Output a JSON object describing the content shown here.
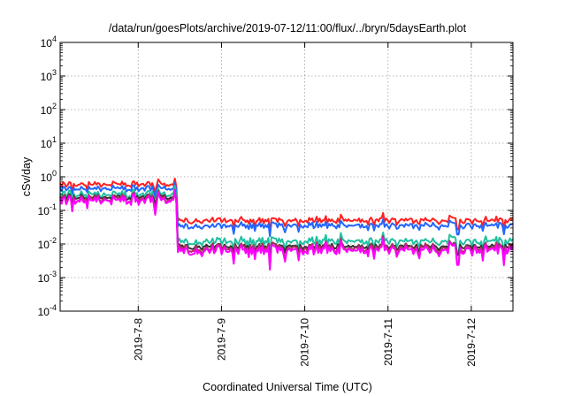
{
  "chart_data": {
    "type": "line",
    "title": "/data/run/goesPlots/archive/2019-07-12/11:00/flux/../bryn/5daysEarth.plot",
    "xlabel": "Coordinated Universal Time (UTC)",
    "ylabel": "cSv/day",
    "yscale": "log",
    "ylim": [
      0.0001,
      10000
    ],
    "xlim": [
      "2019-07-07 01:30",
      "2019-07-12 12:00"
    ],
    "grid": true,
    "legend": "none",
    "y_ticks": [
      {
        "base": "10",
        "exp": "-4"
      },
      {
        "base": "10",
        "exp": "-3"
      },
      {
        "base": "10",
        "exp": "-2"
      },
      {
        "base": "10",
        "exp": "-1"
      },
      {
        "base": "10",
        "exp": "0"
      },
      {
        "base": "10",
        "exp": "1"
      },
      {
        "base": "10",
        "exp": "2"
      },
      {
        "base": "10",
        "exp": "3"
      },
      {
        "base": "10",
        "exp": "4"
      }
    ],
    "x_ticks": [
      {
        "label": "2019-7-8",
        "date": "2019-07-08 00:00"
      },
      {
        "label": "2019-7-9",
        "date": "2019-07-09 00:00"
      },
      {
        "label": "2019-7-10",
        "date": "2019-07-10 00:00"
      },
      {
        "label": "2019-7-11",
        "date": "2019-07-11 00:00"
      },
      {
        "label": "2019-7-12",
        "date": "2019-07-12 00:00"
      }
    ],
    "series": [
      {
        "color": "#ff2020",
        "levels": [
          {
            "from": "2019-07-07 01:30",
            "to": "2019-07-08 11:00",
            "value": 0.6
          },
          {
            "from": "2019-07-08 11:00",
            "to": "2019-07-12 12:00",
            "value": 0.05
          }
        ]
      },
      {
        "color": "#2266ff",
        "levels": [
          {
            "from": "2019-07-07 01:30",
            "to": "2019-07-08 11:00",
            "value": 0.45
          },
          {
            "from": "2019-07-08 11:00",
            "to": "2019-07-12 12:00",
            "value": 0.035
          }
        ]
      },
      {
        "color": "#20c0a0",
        "levels": [
          {
            "from": "2019-07-07 01:30",
            "to": "2019-07-08 11:00",
            "value": 0.3
          },
          {
            "from": "2019-07-08 11:00",
            "to": "2019-07-12 12:00",
            "value": 0.012
          }
        ]
      },
      {
        "color": "#303030",
        "levels": [
          {
            "from": "2019-07-07 01:30",
            "to": "2019-07-08 11:00",
            "value": 0.25
          },
          {
            "from": "2019-07-08 11:00",
            "to": "2019-07-12 12:00",
            "value": 0.0085
          }
        ]
      },
      {
        "color": "#b03060",
        "levels": [
          {
            "from": "2019-07-07 01:30",
            "to": "2019-07-08 11:00",
            "value": 0.22
          },
          {
            "from": "2019-07-08 11:00",
            "to": "2019-07-12 12:00",
            "value": 0.0075
          }
        ]
      },
      {
        "color": "#ff00ff",
        "levels": [
          {
            "from": "2019-07-07 01:30",
            "to": "2019-07-08 11:00",
            "value": 0.2
          },
          {
            "from": "2019-07-08 11:00",
            "to": "2019-07-12 12:00",
            "value": 0.0065
          }
        ]
      }
    ]
  }
}
